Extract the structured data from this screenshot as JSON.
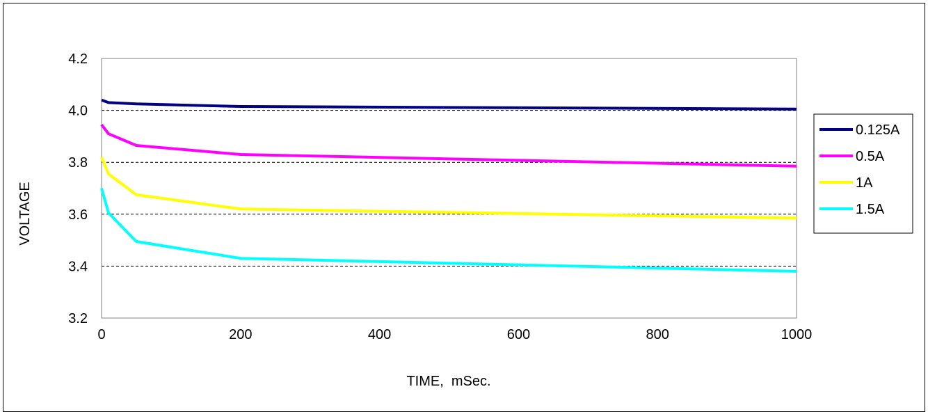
{
  "chart_data": {
    "type": "line",
    "title": "",
    "xlabel": "TIME,  mSec.",
    "ylabel": "VOLTAGE",
    "xlim": [
      0,
      1000
    ],
    "ylim": [
      3.2,
      4.2
    ],
    "xticks": [
      "0",
      "200",
      "400",
      "600",
      "800",
      "1000"
    ],
    "xtick_values": [
      0,
      200,
      400,
      600,
      800,
      1000
    ],
    "yticks": [
      "3.2",
      "3.4",
      "3.6",
      "3.8",
      "4.0",
      "4.2"
    ],
    "ytick_values": [
      3.2,
      3.4,
      3.6,
      3.8,
      4.0,
      4.2
    ],
    "grid": "horizontal dashed",
    "legend_position": "right",
    "series": [
      {
        "name": "0.125A",
        "color": "#000080",
        "x": [
          0,
          10,
          50,
          200,
          1000
        ],
        "y": [
          4.04,
          4.03,
          4.025,
          4.015,
          4.005
        ]
      },
      {
        "name": "0.5A",
        "color": "#ff00ff",
        "x": [
          0,
          10,
          50,
          200,
          1000
        ],
        "y": [
          3.945,
          3.91,
          3.865,
          3.83,
          3.785
        ]
      },
      {
        "name": "1A",
        "color": "#ffff00",
        "x": [
          0,
          10,
          50,
          200,
          1000
        ],
        "y": [
          3.82,
          3.755,
          3.675,
          3.62,
          3.585
        ]
      },
      {
        "name": "1.5A",
        "color": "#00ffff",
        "x": [
          0,
          10,
          50,
          200,
          1000
        ],
        "y": [
          3.7,
          3.605,
          3.495,
          3.43,
          3.38
        ]
      }
    ]
  }
}
